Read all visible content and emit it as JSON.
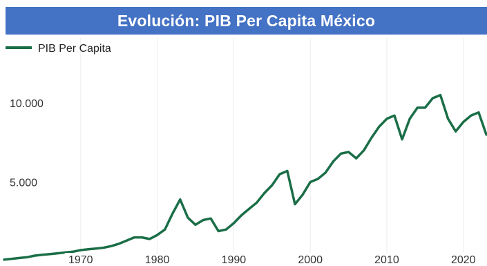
{
  "title": "Evolución: PIB Per Capita México",
  "chart_data": {
    "type": "line",
    "title": "Evolución: PIB Per Capita México",
    "xlabel": "",
    "ylabel": "",
    "xlim": [
      1960,
      2023
    ],
    "ylim": [
      0,
      12500
    ],
    "x_ticks": [
      1970,
      1980,
      1990,
      2000,
      2010,
      2020
    ],
    "x_tick_labels": [
      "1970",
      "1980",
      "1990",
      "2000",
      "2010",
      "2020"
    ],
    "y_ticks": [
      5000,
      10000
    ],
    "y_tick_labels": [
      "5.000",
      "10.000"
    ],
    "grid": "vertical",
    "legend_position": "top-left",
    "series": [
      {
        "name": "PIB Per Capita",
        "color": "#1a6e47",
        "x": [
          1960,
          1961,
          1962,
          1963,
          1964,
          1965,
          1966,
          1967,
          1968,
          1969,
          1970,
          1971,
          1972,
          1973,
          1974,
          1975,
          1976,
          1977,
          1978,
          1979,
          1980,
          1981,
          1982,
          1983,
          1984,
          1985,
          1986,
          1987,
          1988,
          1989,
          1990,
          1991,
          1992,
          1993,
          1994,
          1995,
          1996,
          1997,
          1998,
          1999,
          2000,
          2001,
          2002,
          2003,
          2004,
          2005,
          2006,
          2007,
          2008,
          2009,
          2010,
          2011,
          2012,
          2013,
          2014,
          2015,
          2016,
          2017,
          2018,
          2019,
          2020,
          2021,
          2022,
          2023
        ],
        "values": [
          100,
          150,
          200,
          250,
          350,
          400,
          450,
          500,
          550,
          600,
          700,
          750,
          800,
          850,
          950,
          1100,
          1300,
          1500,
          1500,
          1400,
          1650,
          2000,
          3000,
          3900,
          2750,
          2300,
          2600,
          2700,
          1900,
          2000,
          2400,
          2900,
          3300,
          3700,
          4300,
          4800,
          5500,
          5700,
          3600,
          4200,
          5000,
          5200,
          5600,
          6300,
          6800,
          6900,
          6500,
          7000,
          7800,
          8500,
          9000,
          9200,
          7700,
          9000,
          9700,
          9700,
          10300,
          10500,
          9000,
          8200,
          8800,
          9200,
          9400,
          8000
        ]
      }
    ]
  }
}
